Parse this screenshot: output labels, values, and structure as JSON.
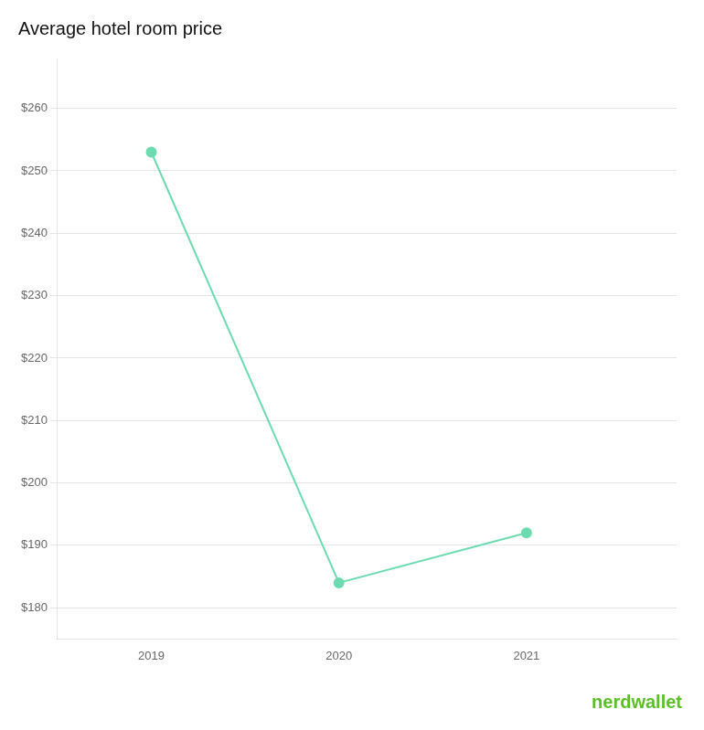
{
  "chart_data": {
    "type": "line",
    "title": "Average hotel room price",
    "x": [
      2019,
      2020,
      2021
    ],
    "values": [
      253,
      184,
      192
    ],
    "color": "#6DDBB0",
    "marker": "circle",
    "xlim": [
      2018.5,
      2021.8
    ],
    "xticks": [
      2019,
      2020,
      2021
    ],
    "ylim": [
      175,
      268
    ],
    "yticks": [
      {
        "value": 180,
        "label": "$180"
      },
      {
        "value": 190,
        "label": "$190"
      },
      {
        "value": 200,
        "label": "$200"
      },
      {
        "value": 210,
        "label": "$210"
      },
      {
        "value": 220,
        "label": "$220"
      },
      {
        "value": 230,
        "label": "$230"
      },
      {
        "value": 240,
        "label": "$240"
      },
      {
        "value": 250,
        "label": "$250"
      },
      {
        "value": 260,
        "label": "$260"
      }
    ],
    "grid": true,
    "annotations": [
      "nerdwallet"
    ]
  }
}
